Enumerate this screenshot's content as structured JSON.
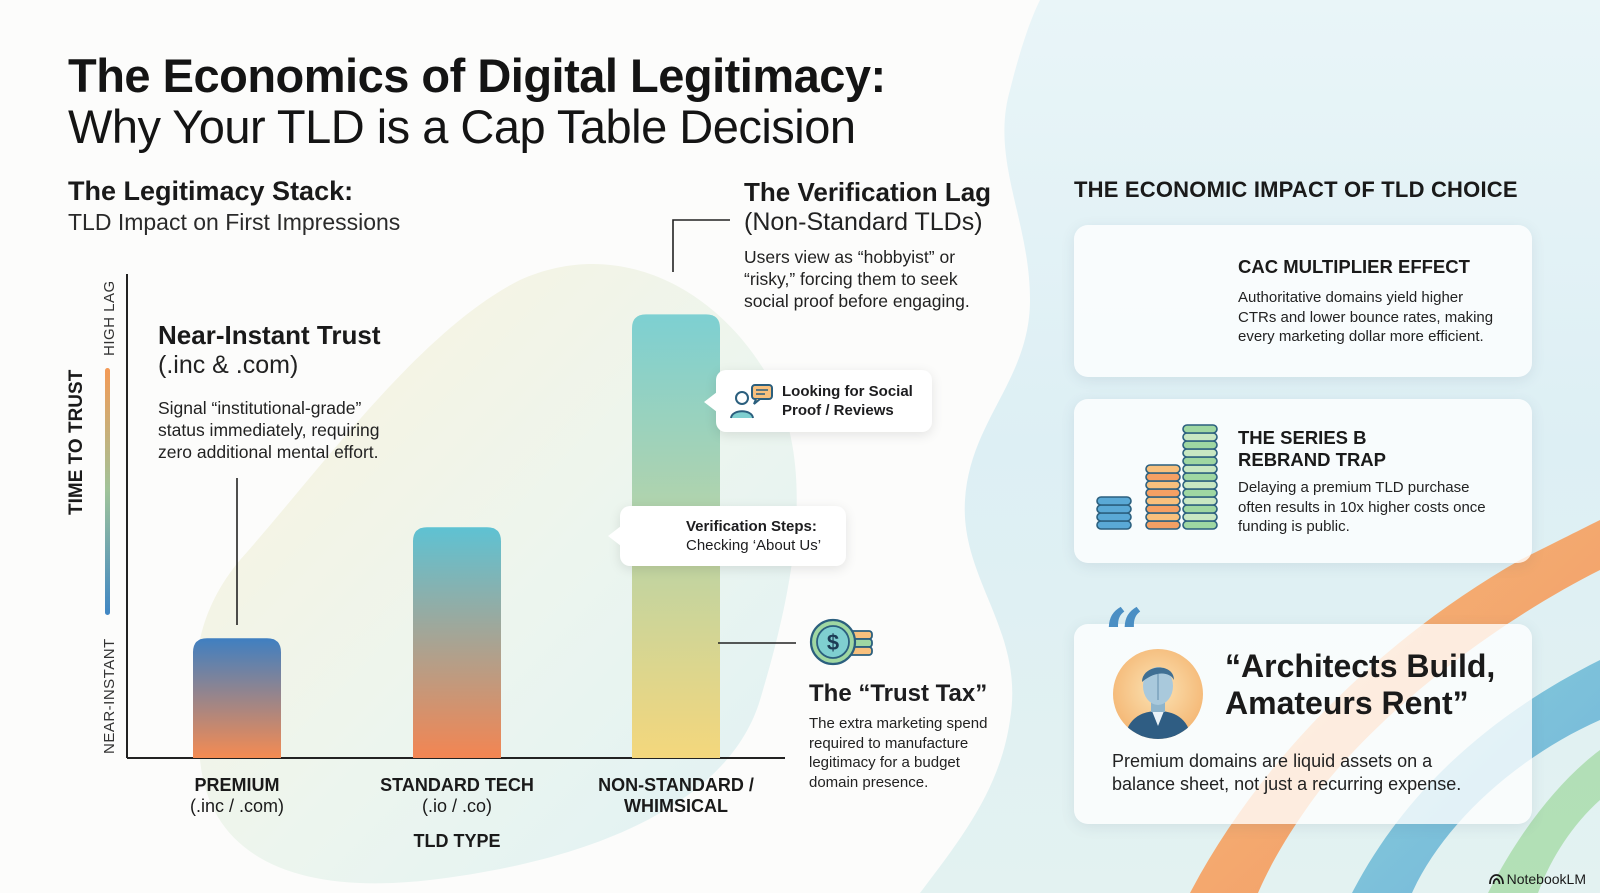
{
  "header": {
    "title": "The Economics of Digital Legitimacy:",
    "subtitle": "Why Your TLD is a Cap Table Decision"
  },
  "stack": {
    "title": "The Legitimacy Stack:",
    "subtitle": "TLD Impact on First Impressions"
  },
  "chart_data": {
    "type": "bar",
    "categories": [
      "PREMIUM\n(.inc / .com)",
      "STANDARD TECH\n(.io / .co)",
      "NON-STANDARD /\nWHIMSICAL"
    ],
    "category_lines": [
      [
        "PREMIUM",
        "(.inc / .com)"
      ],
      [
        "STANDARD TECH",
        "(.io / .co)"
      ],
      [
        "NON-STANDARD /",
        "WHIMSICAL"
      ]
    ],
    "values": [
      0.27,
      0.52,
      1.0
    ],
    "ylim": [
      0,
      1.1
    ],
    "xlabel": "TLD TYPE",
    "ylabel": "TIME TO TRUST",
    "y_scale_top": "HIGH LAG",
    "y_scale_bottom": "NEAR-INSTANT",
    "grid": false,
    "bar_colors": [
      [
        "#3f7fc1",
        "#f58b52"
      ],
      [
        "#5ec2d3",
        "#f38552"
      ],
      [
        "#7dd0d2",
        "#f4d77c"
      ]
    ]
  },
  "annotations": {
    "trust": {
      "title": "Near-Instant Trust",
      "subtitle": "(.inc & .com)",
      "lines": [
        "Signal “institutional-grade”",
        "status immediately, requiring",
        "zero additional mental effort."
      ]
    },
    "lag": {
      "title": "The Verification Lag",
      "subtitle": "(Non-Standard TLDs)",
      "lines": [
        "Users view as “hobbyist” or",
        "“risky,” forcing them to seek",
        "social proof before engaging."
      ]
    },
    "tax": {
      "title": "The “Trust Tax”",
      "lines": [
        "The extra marketing spend",
        "required to manufacture",
        "legitimacy for a budget",
        "domain presence."
      ]
    },
    "bubble_social": {
      "line1": "Looking for Social",
      "line2": "Proof / Reviews"
    },
    "bubble_verify": {
      "line1": "Verification Steps:",
      "line2": "Checking ‘About Us’"
    }
  },
  "impact": {
    "heading": "THE ECONOMIC IMPACT OF TLD CHOICE",
    "cac": {
      "title": "CAC MULTIPLIER EFFECT",
      "lines": [
        "Authoritative domains yield higher",
        "CTRs and lower bounce rates, making",
        "every marketing dollar more efficient."
      ]
    },
    "seriesb": {
      "title_line1": "THE SERIES B",
      "title_line2": "REBRAND TRAP",
      "lines": [
        "Delaying a premium TLD purchase",
        "often results in 10x higher costs once",
        "funding is public."
      ]
    },
    "quote": {
      "mark": "“",
      "line1": "“Architects Build,",
      "line2": "Amateurs Rent”",
      "body_line1": "Premium domains are liquid assets on a",
      "body_line2": "balance sheet, not just a recurring expense."
    }
  },
  "footer": {
    "brand": "NotebookLM"
  },
  "icons": {
    "social": "person-chat-icon",
    "tax": "dollar-coins-icon",
    "stack": "coin-stacks-icon",
    "avatar": "architect-avatar-icon",
    "brand": "notebooklm-logo-icon"
  },
  "colors": {
    "accent_blue": "#4b8fc4",
    "accent_orange": "#f4924f",
    "accent_teal": "#7fcfd0",
    "accent_green": "#9fd7a2"
  }
}
